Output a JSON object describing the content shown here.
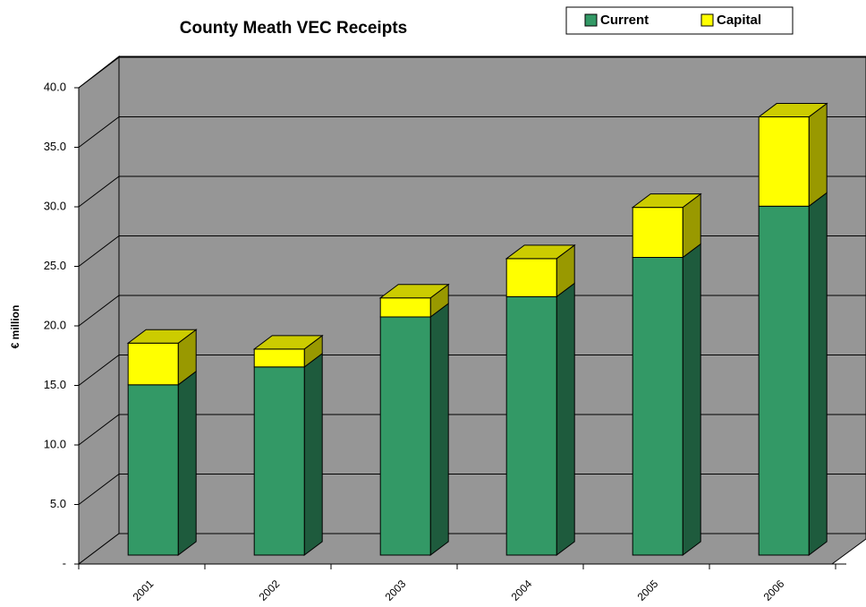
{
  "chart_data": {
    "type": "bar",
    "stacked": true,
    "three_d": true,
    "title": "County Meath VEC Receipts",
    "y_label": "€ million",
    "categories": [
      "2001",
      "2002",
      "2003",
      "2004",
      "2005",
      "2006"
    ],
    "series": [
      {
        "name": "Current",
        "color": "#339966",
        "values": [
          14.3,
          15.8,
          20.0,
          21.7,
          25.0,
          29.3
        ]
      },
      {
        "name": "Capital",
        "color": "#ffff00",
        "values": [
          3.5,
          1.5,
          1.6,
          3.2,
          4.2,
          7.5
        ]
      }
    ],
    "ylim": [
      0,
      40
    ],
    "yticks": [
      {
        "value": 0,
        "label": "-"
      },
      {
        "value": 5,
        "label": "5.0"
      },
      {
        "value": 10,
        "label": "10.0"
      },
      {
        "value": 15,
        "label": "15.0"
      },
      {
        "value": 20,
        "label": "20.0"
      },
      {
        "value": 25,
        "label": "25.0"
      },
      {
        "value": 30,
        "label": "30.0"
      },
      {
        "value": 35,
        "label": "35.0"
      },
      {
        "value": 40,
        "label": "40.0"
      }
    ],
    "grid": true,
    "legend": "top-right"
  }
}
